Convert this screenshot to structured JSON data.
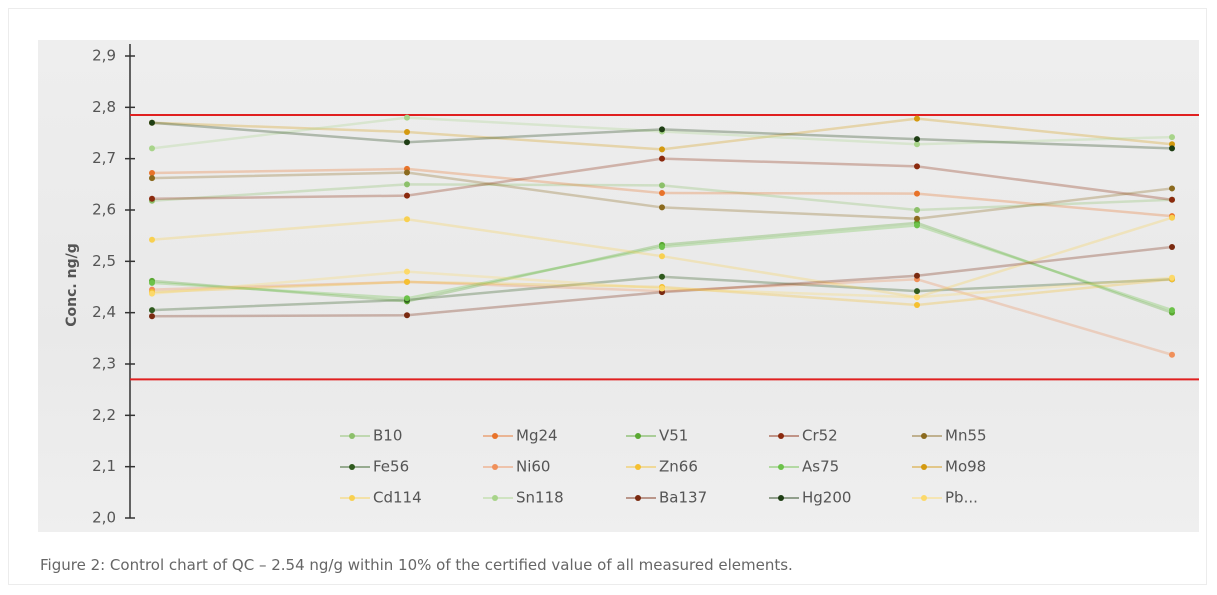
{
  "chart_data": {
    "type": "line",
    "y_label": "Conc. ng/g",
    "caption": "Figure 2: Control chart of QC – 2.54 ng/g within 10% of the certified value of all measured elements.",
    "categories": [
      null,
      null,
      null,
      null,
      null
    ],
    "ylim": [
      2.0,
      2.9
    ],
    "yticks": [
      {
        "value": 2.0,
        "label": "2,0"
      },
      {
        "value": 2.1,
        "label": "2,1"
      },
      {
        "value": 2.2,
        "label": "2,2"
      },
      {
        "value": 2.3,
        "label": "2,3"
      },
      {
        "value": 2.4,
        "label": "2,4"
      },
      {
        "value": 2.5,
        "label": "2,5"
      },
      {
        "value": 2.6,
        "label": "2,6"
      },
      {
        "value": 2.7,
        "label": "2,7"
      },
      {
        "value": 2.8,
        "label": "2,8"
      },
      {
        "value": 2.9,
        "label": "2,9"
      }
    ],
    "reference_lines": [
      2.785,
      2.27
    ],
    "reference_color": "#e02020",
    "series": [
      {
        "name": "B10",
        "color": "#8cc06a",
        "values": [
          2.618,
          2.65,
          2.648,
          2.6,
          2.62
        ]
      },
      {
        "name": "Mg24",
        "color": "#e8732a",
        "values": [
          2.672,
          2.68,
          2.633,
          2.632,
          2.588
        ]
      },
      {
        "name": "V51",
        "color": "#5aa832",
        "values": [
          2.462,
          2.422,
          2.532,
          2.575,
          2.4
        ]
      },
      {
        "name": "Cr52",
        "color": "#8b2a0e",
        "values": [
          2.622,
          2.628,
          2.7,
          2.685,
          2.62
        ]
      },
      {
        "name": "Mn55",
        "color": "#8b6a1e",
        "values": [
          2.662,
          2.673,
          2.605,
          2.583,
          2.642
        ]
      },
      {
        "name": "Fe56",
        "color": "#2f5a1e",
        "values": [
          2.405,
          2.425,
          2.47,
          2.442,
          2.465
        ]
      },
      {
        "name": "Ni60",
        "color": "#f0905a",
        "values": [
          2.445,
          2.46,
          2.442,
          2.465,
          2.318
        ]
      },
      {
        "name": "Zn66",
        "color": "#f5c030",
        "values": [
          2.44,
          2.46,
          2.45,
          2.415,
          2.465
        ]
      },
      {
        "name": "As75",
        "color": "#6cc24a",
        "values": [
          2.458,
          2.428,
          2.528,
          2.57,
          2.405
        ]
      },
      {
        "name": "Mo98",
        "color": "#d49a10",
        "values": [
          2.77,
          2.752,
          2.718,
          2.778,
          2.728
        ]
      },
      {
        "name": "Cd114",
        "color": "#f8d050",
        "values": [
          2.542,
          2.582,
          2.51,
          2.43,
          2.585
        ]
      },
      {
        "name": "Sn118",
        "color": "#a8d48a",
        "values": [
          2.72,
          2.78,
          2.753,
          2.728,
          2.742
        ]
      },
      {
        "name": "Ba137",
        "color": "#7a2a10",
        "values": [
          2.393,
          2.395,
          2.44,
          2.472,
          2.528
        ]
      },
      {
        "name": "Hg200",
        "color": "#1e3e14",
        "values": [
          2.77,
          2.732,
          2.757,
          2.738,
          2.72
        ]
      },
      {
        "name": "Pb...",
        "color": "#fcd96a",
        "values": [
          2.437,
          2.48,
          2.447,
          2.43,
          2.468
        ]
      }
    ]
  }
}
